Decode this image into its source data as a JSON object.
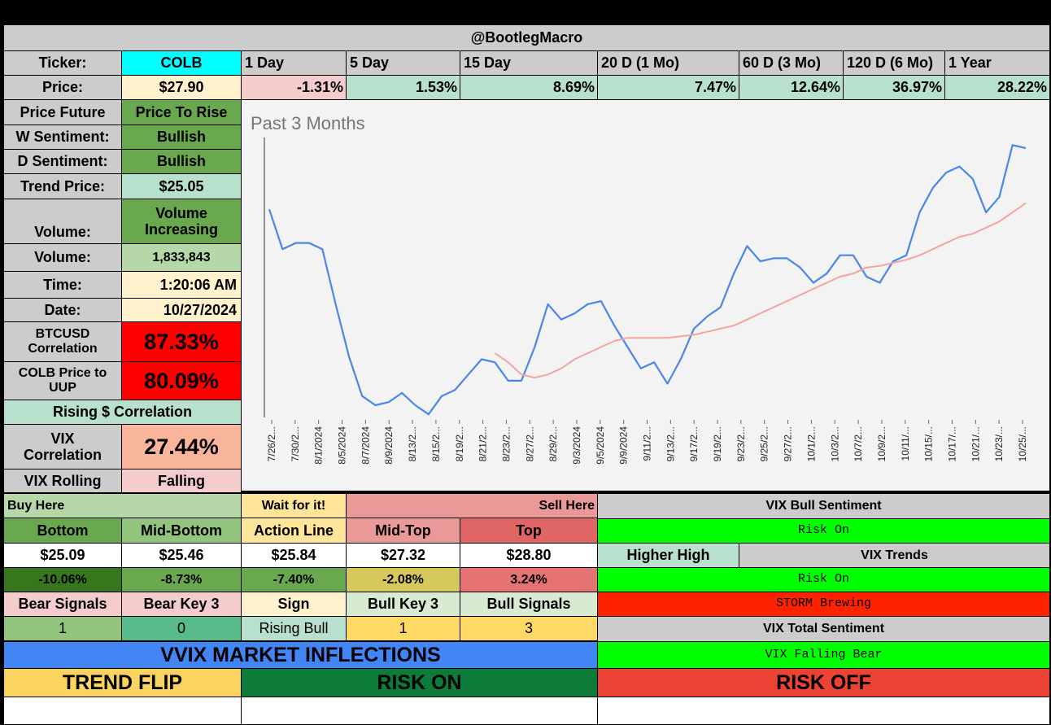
{
  "header": {
    "title": "@BootlegMacro"
  },
  "ticker_row": {
    "label": "Ticker:",
    "value": "COLB",
    "periods": [
      "1 Day",
      "5 Day",
      "15 Day",
      "20 D (1 Mo)",
      "60 D (3 Mo)",
      "120 D (6 Mo)",
      "1 Year"
    ]
  },
  "price_row": {
    "label": "Price:",
    "value": "$27.90",
    "changes": [
      "-1.31%",
      "1.53%",
      "8.69%",
      "7.47%",
      "12.64%",
      "36.97%",
      "28.22%"
    ]
  },
  "left_panel": {
    "price_future": {
      "label": "Price Future",
      "value": "Price To Rise"
    },
    "w_sentiment": {
      "label": "W Sentiment:",
      "value": "Bullish"
    },
    "d_sentiment": {
      "label": "D Sentiment:",
      "value": "Bullish"
    },
    "trend_price": {
      "label": "Trend Price:",
      "value": "$25.05"
    },
    "volume_trend": {
      "label": "Volume:",
      "value_line1": "Volume",
      "value_line2": "Increasing"
    },
    "volume": {
      "label": "Volume:",
      "value": "1,833,843"
    },
    "time": {
      "label": "Time:",
      "value": "1:20:06 AM"
    },
    "date": {
      "label": "Date:",
      "value": "10/27/2024"
    },
    "btc_corr": {
      "label_line1": "BTCUSD",
      "label_line2": "Correlation",
      "value": "87.33%"
    },
    "uup_corr": {
      "label_line1": "COLB Price to",
      "label_line2": "UUP",
      "value": "80.09%"
    },
    "rising_corr": {
      "label": "Rising $ Correlation"
    },
    "vix_corr": {
      "label_line1": "VIX",
      "label_line2": "Correlation",
      "value": "27.44%"
    },
    "vix_rolling": {
      "label": "VIX Rolling",
      "value": "Falling"
    }
  },
  "levels": {
    "buy_here": "Buy Here",
    "wait": "Wait for it!",
    "sell_here": "Sell Here",
    "headers": [
      "Bottom",
      "Mid-Bottom",
      "Action Line",
      "Mid-Top",
      "Top"
    ],
    "prices": [
      "$25.09",
      "$25.46",
      "$25.84",
      "$27.32",
      "$28.80"
    ],
    "pcts": [
      "-10.06%",
      "-8.73%",
      "-7.40%",
      "-2.08%",
      "3.24%"
    ],
    "signal_headers": [
      "Bear Signals",
      "Bear Key 3",
      "Sign",
      "Bull Key 3",
      "Bull Signals"
    ],
    "signal_values": [
      "1",
      "0",
      "Rising Bull",
      "1",
      "3"
    ]
  },
  "vix_panel": {
    "title": "VIX Bull Sentiment",
    "risk_on_1": "Risk On",
    "higher_high": "Higher High",
    "vix_trends": "VIX Trends",
    "risk_on_2": "Risk On",
    "storm": "STORM Brewing",
    "total_title": "VIX Total Sentiment",
    "falling_bear": "VIX Falling Bear"
  },
  "vvix": {
    "title": "VVIX MARKET INFLECTIONS",
    "trend_flip": "TREND FLIP",
    "risk_on": "RISK ON",
    "risk_off": "RISK OFF"
  },
  "colors": {
    "green": "#6aa84f",
    "light_green": "#b6d7a8",
    "mint": "#b7e1cd",
    "red": "#ff0000",
    "pink": "#f4cccc",
    "yellow": "#fff2cc",
    "cyan": "#00ffff",
    "lime": "#00ff00",
    "blue": "#4285f4",
    "price_line": "#4a86e8",
    "ma_line": "#f4a3a0"
  },
  "chart_data": {
    "type": "line",
    "title": "Past 3 Months",
    "x_tick_labels": [
      "7/26/2...",
      "7/30/2...",
      "8/1/2024",
      "8/5/2024",
      "8/7/2024",
      "8/9/2024",
      "8/13/2...",
      "8/15/2...",
      "8/19/2...",
      "8/21/2...",
      "8/23/2...",
      "8/27/2...",
      "8/29/2...",
      "9/3/2024",
      "9/5/2024",
      "9/9/2024",
      "9/11/2...",
      "9/13/2...",
      "9/17/2...",
      "9/19/2...",
      "9/23/2...",
      "9/25/2...",
      "9/27/2...",
      "10/1/2...",
      "10/3/2...",
      "10/7/2...",
      "10/9/2...",
      "10/11/...",
      "10/15/...",
      "10/17/...",
      "10/21/...",
      "10/23/...",
      "10/25/..."
    ],
    "series": [
      {
        "values": [
          26.6,
          25.3,
          25.5,
          25.5,
          25.3,
          23.5,
          21.8,
          20.5,
          20.2,
          20.3,
          20.6,
          20.2,
          19.9,
          20.5,
          20.7,
          21.2,
          21.7,
          21.6,
          21.0,
          21.0,
          22.1,
          23.5,
          23.0,
          23.2,
          23.5,
          23.6,
          22.8,
          22.1,
          21.4,
          21.6,
          20.9,
          21.7,
          22.7,
          23.1,
          23.4,
          24.5,
          25.4,
          24.9,
          25.0,
          25.0,
          24.7,
          24.2,
          24.5,
          25.1,
          25.1,
          24.4,
          24.2,
          24.9,
          25.1,
          26.5,
          27.3,
          27.8,
          28.0,
          27.6,
          26.5,
          27.0,
          28.7,
          28.6
        ],
        "color": "#4a86e8"
      },
      {
        "values": [
          null,
          null,
          null,
          null,
          null,
          null,
          null,
          null,
          null,
          null,
          null,
          null,
          null,
          null,
          null,
          null,
          null,
          21.9,
          21.6,
          21.2,
          21.1,
          21.2,
          21.4,
          21.7,
          21.9,
          22.1,
          22.3,
          22.4,
          22.4,
          22.4,
          22.4,
          22.45,
          22.5,
          22.6,
          22.7,
          22.8,
          23.0,
          23.2,
          23.4,
          23.6,
          23.8,
          24.0,
          24.2,
          24.4,
          24.5,
          24.7,
          24.75,
          24.85,
          24.95,
          25.1,
          25.3,
          25.5,
          25.7,
          25.8,
          26.0,
          26.2,
          26.5,
          26.8
        ],
        "color": "#f4a3a0"
      }
    ],
    "ylim": [
      19.8,
      29.0
    ],
    "grid": false,
    "legend": "none"
  }
}
